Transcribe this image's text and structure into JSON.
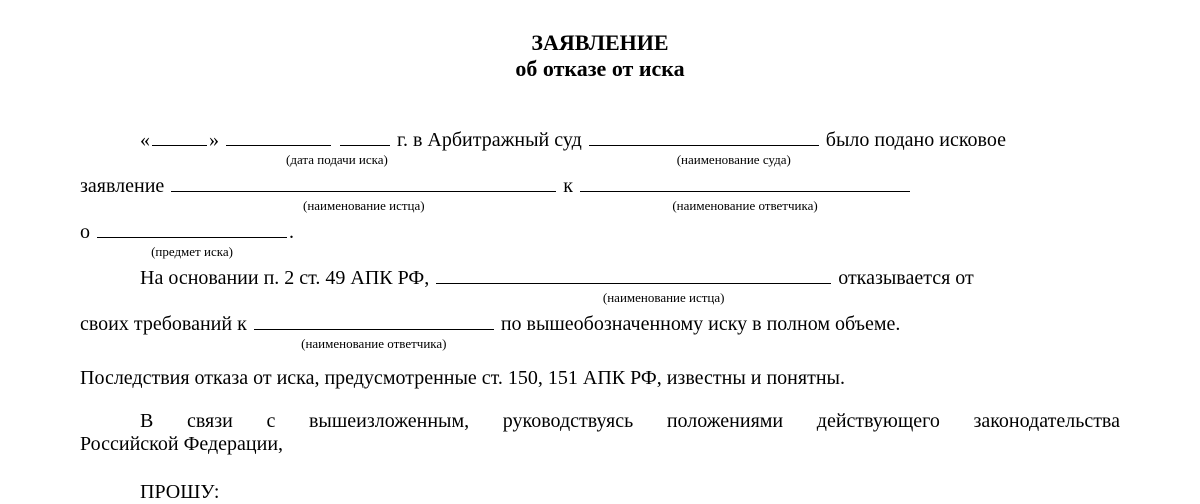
{
  "title": {
    "main": "ЗАЯВЛЕНИЕ",
    "sub": "об отказе от иска"
  },
  "body": {
    "line1": {
      "pre_quote": "«",
      "post_quote": "»",
      "year_suffix": "г. в Арбитражный суд",
      "tail": "было подано исковое",
      "hint_date": "(дата подачи иска)",
      "hint_court": "(наименование суда)"
    },
    "line2": {
      "pre": "заявление",
      "k": "к",
      "hint_plaintiff": "(наименование истца)",
      "hint_defendant": "(наименование ответчика)"
    },
    "line3": {
      "pre": "о",
      "dot": ".",
      "hint_subject": "(предмет иска)"
    },
    "line4": {
      "pre": "На основании п. 2 ст. 49 АПК РФ,",
      "tail": "отказывается от",
      "hint_plaintiff": "(наименование истца)"
    },
    "line5": {
      "pre": "своих требований к",
      "tail": "по вышеобозначенному иску в полном объеме.",
      "hint_defendant": "(наименование ответчика)"
    }
  },
  "para1": "Последствия отказа от иска, предусмотренные ст. 150, 151 АПК РФ, известны и понятны.",
  "para2_l1": "В связи с вышеизложенным, руководствуясь положениями действующего законодательства",
  "para2_l2": "Российской Федерации,",
  "proshu": "ПРОШУ:",
  "dimensions": {
    "blank_day": 55,
    "blank_month": 105,
    "blank_year": 50,
    "blank_court": 230,
    "blank_plaintiff_1": 385,
    "blank_defendant_1": 330,
    "blank_subject": 190,
    "blank_plaintiff_2": 395,
    "blank_defendant_2": 240
  },
  "colors": {
    "text": "#000000",
    "background": "#ffffff"
  }
}
